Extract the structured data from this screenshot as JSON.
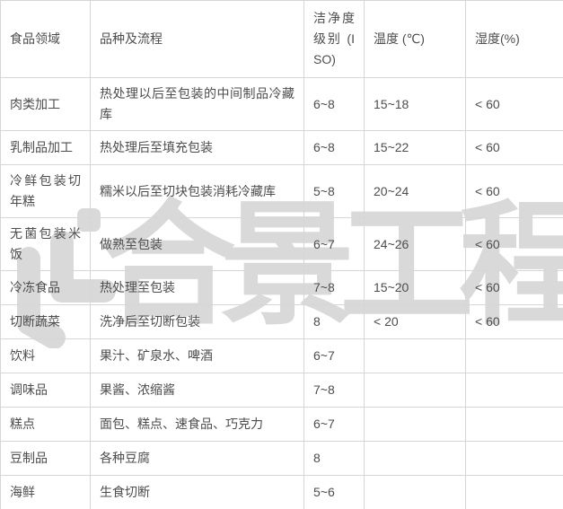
{
  "watermark": {
    "text": "合景工程",
    "logo_icon": "company-logo",
    "color": "#d9d9d9"
  },
  "table": {
    "columns": [
      {
        "key": "field",
        "label": "食品领域"
      },
      {
        "key": "process",
        "label": "品种及流程"
      },
      {
        "key": "iso",
        "label": "洁净度级别 (ISO)"
      },
      {
        "key": "temp",
        "label": "温度 (℃)"
      },
      {
        "key": "humidity",
        "label": "湿度(%)"
      }
    ],
    "rows": [
      {
        "field": "肉类加工",
        "process": "热处理以后至包装的中间制品冷藏库",
        "iso": "6~8",
        "temp": "15~18",
        "humidity": "< 60"
      },
      {
        "field": "乳制品加工",
        "process": "热处理后至填充包装",
        "iso": "6~8",
        "temp": "15~22",
        "humidity": "< 60"
      },
      {
        "field": "冷鲜包装切年糕",
        "process": "糯米以后至切块包装消耗冷藏库",
        "iso": "5~8",
        "temp": "20~24",
        "humidity": "< 60"
      },
      {
        "field": "无菌包装米饭",
        "process": "做熟至包装",
        "iso": "6~7",
        "temp": "24~26",
        "humidity": "< 60"
      },
      {
        "field": "冷冻食品",
        "process": "热处理至包装",
        "iso": "7~8",
        "temp": "15~20",
        "humidity": "< 60"
      },
      {
        "field": "切断蔬菜",
        "process": "洗净后至切断包装",
        "iso": "8",
        "temp": "< 20",
        "humidity": "< 60"
      },
      {
        "field": "饮料",
        "process": "果汁、矿泉水、啤酒",
        "iso": "6~7",
        "temp": "",
        "humidity": ""
      },
      {
        "field": "调味品",
        "process": "果酱、浓缩酱",
        "iso": "7~8",
        "temp": "",
        "humidity": ""
      },
      {
        "field": "糕点",
        "process": "面包、糕点、速食品、巧克力",
        "iso": "6~7",
        "temp": "",
        "humidity": ""
      },
      {
        "field": "豆制品",
        "process": "各种豆腐",
        "iso": "8",
        "temp": "",
        "humidity": ""
      },
      {
        "field": "海鲜",
        "process": "生食切断",
        "iso": "5~6",
        "temp": "",
        "humidity": ""
      }
    ]
  }
}
